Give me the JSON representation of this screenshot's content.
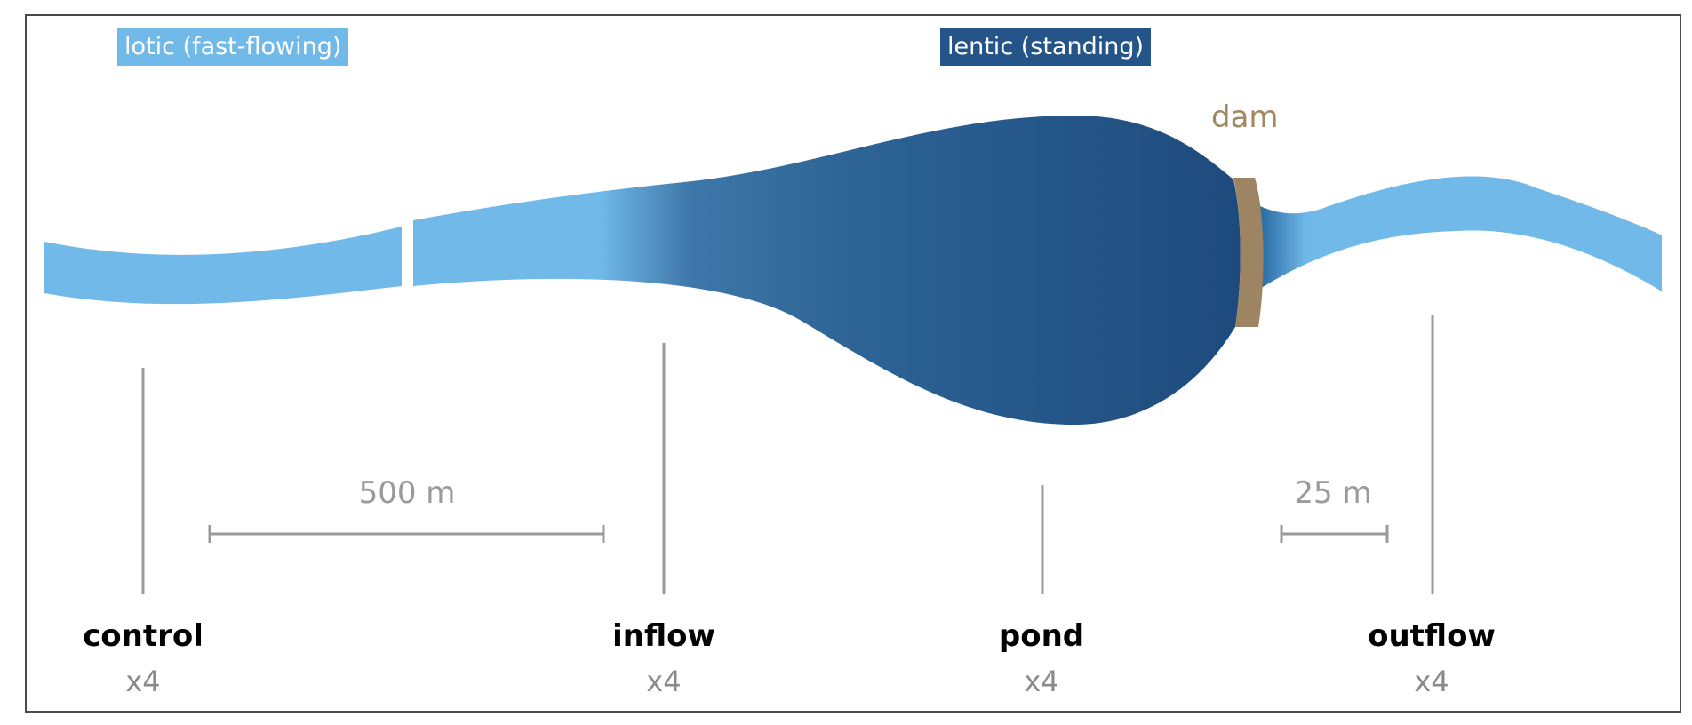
{
  "legend": {
    "lotic": "lotic (fast-flowing)",
    "lentic": "lentic (standing)"
  },
  "dam_label": "dam",
  "scale_bars": {
    "long": "500 m",
    "short": "25 m"
  },
  "sites": [
    {
      "name": "control",
      "count": "x4"
    },
    {
      "name": "inflow",
      "count": "x4"
    },
    {
      "name": "pond",
      "count": "x4"
    },
    {
      "name": "outflow",
      "count": "x4"
    }
  ],
  "colors": {
    "lotic": "#70b9e8",
    "lentic": "#1f4a7c",
    "dam": "#9d8462",
    "marker": "#9a9a9a"
  }
}
